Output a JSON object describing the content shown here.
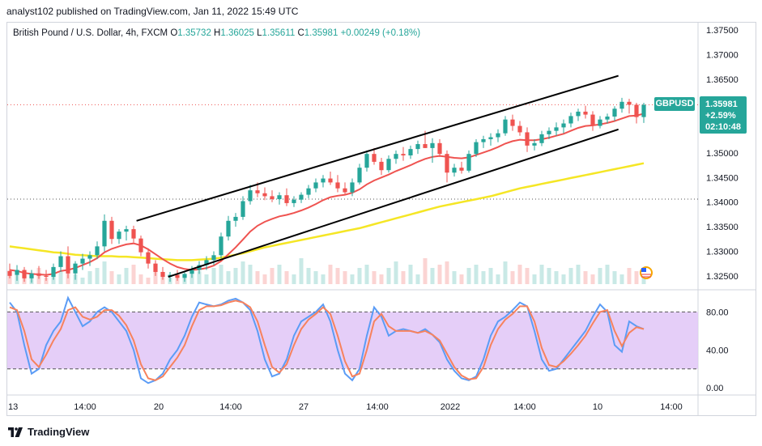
{
  "header": {
    "published": "analyst102 published on TradingView.com, Jan 11, 2022 15:49 UTC"
  },
  "instrument": {
    "name": "British Pound / U.S. Dollar, 4h, FXCM",
    "open_label": "O",
    "open": "1.35732",
    "high_label": "H",
    "high": "1.36025",
    "low_label": "L",
    "low": "1.35611",
    "close_label": "C",
    "close": "1.35981",
    "change": "+0.00249 (+0.18%)"
  },
  "price_tag": {
    "symbol": "GBPUSD",
    "price": "1.35981",
    "change": "+2.59%",
    "countdown": "02:10:48"
  },
  "footer": {
    "brand": "TradingView"
  },
  "colors": {
    "up": "#26a69a",
    "down": "#ef5350",
    "ma_fast": "#ef5350",
    "ma_slow": "#f5e625",
    "stoch_k": "#5b9cf6",
    "stoch_d": "#f7825d",
    "stoch_band": "#e1c6f7",
    "channel": "#000000",
    "tag_bg": "#26a69a"
  },
  "chart_data": [
    {
      "type": "candlestick",
      "title": "British Pound / U.S. Dollar, 4h, FXCM",
      "x_ticks": [
        "13",
        "14:00",
        "20",
        "14:00",
        "27",
        "14:00",
        "2022",
        "14:00",
        "10",
        "14:00"
      ],
      "y_ticks": [
        "1.37500",
        "1.37000",
        "1.36500",
        "1.36000",
        "1.35500",
        "1.35000",
        "1.34500",
        "1.34000",
        "1.33500",
        "1.33000",
        "1.32500"
      ],
      "ylim": [
        1.3225,
        1.3765
      ],
      "last_price": 1.35981,
      "prior_close_dotted": 1.3406,
      "ohlc": [
        [
          1.326,
          1.3275,
          1.3245,
          1.325
        ],
        [
          1.3252,
          1.3272,
          1.324,
          1.3262
        ],
        [
          1.3262,
          1.3268,
          1.3238,
          1.3245
        ],
        [
          1.3245,
          1.3262,
          1.3236,
          1.3255
        ],
        [
          1.3255,
          1.327,
          1.3244,
          1.325
        ],
        [
          1.325,
          1.3262,
          1.324,
          1.3248
        ],
        [
          1.3248,
          1.3275,
          1.3242,
          1.3268
        ],
        [
          1.3268,
          1.33,
          1.3258,
          1.329
        ],
        [
          1.329,
          1.331,
          1.3245,
          1.3255
        ],
        [
          1.3255,
          1.328,
          1.3242,
          1.3275
        ],
        [
          1.3275,
          1.3295,
          1.3262,
          1.3285
        ],
        [
          1.3285,
          1.33,
          1.327,
          1.3292
        ],
        [
          1.3292,
          1.332,
          1.3284,
          1.331
        ],
        [
          1.331,
          1.3375,
          1.33,
          1.3362
        ],
        [
          1.3362,
          1.337,
          1.3315,
          1.3325
        ],
        [
          1.3325,
          1.3345,
          1.3315,
          1.334
        ],
        [
          1.334,
          1.3352,
          1.3322,
          1.3345
        ],
        [
          1.3345,
          1.3352,
          1.3318,
          1.3326
        ],
        [
          1.3326,
          1.3332,
          1.329,
          1.3298
        ],
        [
          1.3298,
          1.3306,
          1.3265,
          1.3275
        ],
        [
          1.3275,
          1.3282,
          1.325,
          1.3258
        ],
        [
          1.3258,
          1.3268,
          1.3242,
          1.3248
        ],
        [
          1.3248,
          1.3258,
          1.3238,
          1.3252
        ],
        [
          1.3252,
          1.3262,
          1.324,
          1.3246
        ],
        [
          1.3246,
          1.326,
          1.3238,
          1.3254
        ],
        [
          1.3254,
          1.327,
          1.3246,
          1.3262
        ],
        [
          1.3262,
          1.328,
          1.3254,
          1.3272
        ],
        [
          1.3272,
          1.329,
          1.3262,
          1.3282
        ],
        [
          1.3282,
          1.33,
          1.3272,
          1.3292
        ],
        [
          1.3292,
          1.3338,
          1.3286,
          1.333
        ],
        [
          1.333,
          1.3372,
          1.3322,
          1.3362
        ],
        [
          1.3362,
          1.3378,
          1.335,
          1.337
        ],
        [
          1.337,
          1.3412,
          1.3364,
          1.3402
        ],
        [
          1.3402,
          1.3435,
          1.3395,
          1.3424
        ],
        [
          1.3424,
          1.344,
          1.341,
          1.3418
        ],
        [
          1.3418,
          1.343,
          1.3404,
          1.3412
        ],
        [
          1.3412,
          1.3424,
          1.34,
          1.3406
        ],
        [
          1.3406,
          1.342,
          1.3395,
          1.3414
        ],
        [
          1.3414,
          1.3428,
          1.3392,
          1.3398
        ],
        [
          1.3398,
          1.3412,
          1.339,
          1.3405
        ],
        [
          1.3405,
          1.342,
          1.3398,
          1.3415
        ],
        [
          1.3415,
          1.3435,
          1.3408,
          1.3428
        ],
        [
          1.3428,
          1.3448,
          1.342,
          1.344
        ],
        [
          1.344,
          1.3455,
          1.343,
          1.3448
        ],
        [
          1.3448,
          1.3462,
          1.3435,
          1.344
        ],
        [
          1.344,
          1.3455,
          1.342,
          1.3428
        ],
        [
          1.3428,
          1.344,
          1.3415,
          1.342
        ],
        [
          1.342,
          1.3448,
          1.3412,
          1.344
        ],
        [
          1.344,
          1.3478,
          1.3436,
          1.347
        ],
        [
          1.347,
          1.3505,
          1.3462,
          1.3498
        ],
        [
          1.3498,
          1.351,
          1.3476,
          1.3482
        ],
        [
          1.3482,
          1.349,
          1.3455,
          1.3465
        ],
        [
          1.3465,
          1.3495,
          1.346,
          1.3488
        ],
        [
          1.3488,
          1.3505,
          1.3478,
          1.3498
        ],
        [
          1.3498,
          1.3512,
          1.3484,
          1.3495
        ],
        [
          1.3495,
          1.3515,
          1.3488,
          1.3508
        ],
        [
          1.3508,
          1.3525,
          1.3498,
          1.3518
        ],
        [
          1.3518,
          1.3545,
          1.351,
          1.351
        ],
        [
          1.351,
          1.353,
          1.348,
          1.352
        ],
        [
          1.352,
          1.3528,
          1.3492,
          1.3498
        ],
        [
          1.3498,
          1.3505,
          1.344,
          1.346
        ],
        [
          1.346,
          1.3478,
          1.3452,
          1.347
        ],
        [
          1.347,
          1.3482,
          1.3458,
          1.3464
        ],
        [
          1.3464,
          1.3505,
          1.346,
          1.3498
        ],
        [
          1.3498,
          1.3528,
          1.3492,
          1.3522
        ],
        [
          1.3522,
          1.3535,
          1.351,
          1.3528
        ],
        [
          1.3528,
          1.354,
          1.3515,
          1.3532
        ],
        [
          1.3532,
          1.3548,
          1.3522,
          1.354
        ],
        [
          1.354,
          1.3575,
          1.3535,
          1.3568
        ],
        [
          1.3568,
          1.3578,
          1.3545,
          1.3555
        ],
        [
          1.3555,
          1.3565,
          1.3535,
          1.3542
        ],
        [
          1.3542,
          1.3552,
          1.3502,
          1.3515
        ],
        [
          1.3515,
          1.3528,
          1.3505,
          1.352
        ],
        [
          1.352,
          1.3545,
          1.3514,
          1.3538
        ],
        [
          1.3538,
          1.3552,
          1.3528,
          1.3545
        ],
        [
          1.3545,
          1.3562,
          1.3535,
          1.3552
        ],
        [
          1.3552,
          1.3568,
          1.354,
          1.356
        ],
        [
          1.356,
          1.3582,
          1.3552,
          1.3575
        ],
        [
          1.3575,
          1.359,
          1.3565,
          1.3584
        ],
        [
          1.3584,
          1.3596,
          1.357,
          1.3578
        ],
        [
          1.3578,
          1.3585,
          1.3545,
          1.3555
        ],
        [
          1.3555,
          1.3575,
          1.355,
          1.3568
        ],
        [
          1.3568,
          1.358,
          1.356,
          1.3574
        ],
        [
          1.3574,
          1.3595,
          1.3565,
          1.359
        ],
        [
          1.359,
          1.3612,
          1.3582,
          1.3604
        ],
        [
          1.3604,
          1.361,
          1.358,
          1.3598
        ],
        [
          1.3598,
          1.3602,
          1.356,
          1.3573
        ],
        [
          1.3573,
          1.3602,
          1.3561,
          1.3598
        ]
      ],
      "ma_fast": [
        1.3262,
        1.326,
        1.3256,
        1.3254,
        1.3253,
        1.3252,
        1.3254,
        1.326,
        1.3262,
        1.3266,
        1.3272,
        1.3278,
        1.3286,
        1.3298,
        1.3305,
        1.331,
        1.3314,
        1.3316,
        1.3312,
        1.3304,
        1.3294,
        1.3284,
        1.3275,
        1.3268,
        1.3264,
        1.3262,
        1.3263,
        1.3266,
        1.3271,
        1.328,
        1.3294,
        1.3308,
        1.3324,
        1.334,
        1.3352,
        1.336,
        1.3366,
        1.3371,
        1.3374,
        1.3378,
        1.3383,
        1.3389,
        1.3396,
        1.3404,
        1.341,
        1.3413,
        1.3415,
        1.3419,
        1.3426,
        1.3436,
        1.3444,
        1.345,
        1.3456,
        1.3463,
        1.3469,
        1.3475,
        1.3482,
        1.3488,
        1.3492,
        1.3494,
        1.3492,
        1.349,
        1.3489,
        1.3491,
        1.3496,
        1.3501,
        1.3506,
        1.3512,
        1.3519,
        1.3524,
        1.3527,
        1.3526,
        1.3526,
        1.3528,
        1.3531,
        1.3535,
        1.3539,
        1.3545,
        1.3551,
        1.3555,
        1.3556,
        1.3558,
        1.3561,
        1.3565,
        1.357,
        1.3575,
        1.3576,
        1.358
      ],
      "ma_slow": [
        1.331,
        1.3308,
        1.3306,
        1.3304,
        1.3302,
        1.33,
        1.3298,
        1.3297,
        1.3295,
        1.3293,
        1.3292,
        1.3291,
        1.329,
        1.329,
        1.329,
        1.3289,
        1.3289,
        1.3288,
        1.3287,
        1.3286,
        1.3285,
        1.3284,
        1.3283,
        1.3282,
        1.3282,
        1.3282,
        1.3283,
        1.3284,
        1.3285,
        1.3287,
        1.329,
        1.3293,
        1.3296,
        1.33,
        1.3304,
        1.3308,
        1.3311,
        1.3314,
        1.3317,
        1.332,
        1.3323,
        1.3326,
        1.3329,
        1.3332,
        1.3335,
        1.3338,
        1.3341,
        1.3344,
        1.3347,
        1.3351,
        1.3355,
        1.3359,
        1.3363,
        1.3367,
        1.3371,
        1.3375,
        1.3379,
        1.3383,
        1.3387,
        1.3391,
        1.3394,
        1.3397,
        1.34,
        1.3403,
        1.3406,
        1.3409,
        1.3412,
        1.3416,
        1.342,
        1.3424,
        1.3428,
        1.3431,
        1.3434,
        1.3437,
        1.344,
        1.3443,
        1.3446,
        1.3449,
        1.3452,
        1.3455,
        1.3458,
        1.3461,
        1.3464,
        1.3467,
        1.347,
        1.3473,
        1.3476,
        1.3479
      ],
      "volume": [
        3,
        4,
        2,
        3,
        5,
        2,
        3,
        4,
        6,
        3,
        2,
        4,
        5,
        7,
        4,
        3,
        5,
        6,
        3,
        2,
        4,
        3,
        2,
        3,
        2,
        3,
        4,
        3,
        5,
        6,
        4,
        5,
        7,
        6,
        4,
        3,
        5,
        6,
        4,
        3,
        8,
        5,
        4,
        3,
        6,
        5,
        4,
        3,
        5,
        6,
        4,
        3,
        5,
        7,
        4,
        6,
        3,
        8,
        5,
        6,
        7,
        4,
        3,
        5,
        6,
        4,
        5,
        3,
        7,
        4,
        6,
        5,
        3,
        6,
        5,
        4,
        3,
        5,
        6,
        4,
        3,
        5,
        6,
        4,
        3,
        5,
        4,
        3
      ],
      "channel_upper": [
        [
          1.3362,
          0.2
        ],
        [
          1.3657,
          0.96
        ]
      ],
      "channel_lower": [
        [
          1.3248,
          0.25
        ],
        [
          1.3548,
          0.96
        ]
      ]
    },
    {
      "type": "line",
      "title": "Stochastic",
      "y_ticks": [
        "80.00",
        "40.00",
        "0.00"
      ],
      "ylim": [
        -5,
        100
      ],
      "band": [
        20,
        80
      ],
      "series": [
        {
          "key": "k",
          "values": [
            90,
            80,
            45,
            15,
            20,
            45,
            60,
            70,
            95,
            80,
            65,
            70,
            80,
            85,
            80,
            70,
            60,
            40,
            10,
            5,
            8,
            15,
            30,
            40,
            55,
            75,
            90,
            88,
            86,
            88,
            92,
            94,
            90,
            82,
            60,
            30,
            12,
            15,
            30,
            55,
            70,
            75,
            80,
            88,
            70,
            40,
            15,
            8,
            20,
            55,
            85,
            75,
            55,
            60,
            62,
            60,
            58,
            62,
            56,
            48,
            30,
            18,
            10,
            8,
            12,
            30,
            55,
            70,
            75,
            82,
            90,
            86,
            60,
            30,
            18,
            20,
            30,
            40,
            50,
            60,
            75,
            88,
            80,
            45,
            38,
            70,
            65,
            62
          ]
        },
        {
          "key": "d",
          "values": [
            85,
            82,
            60,
            30,
            22,
            35,
            50,
            62,
            82,
            85,
            75,
            72,
            75,
            82,
            82,
            76,
            66,
            50,
            25,
            10,
            8,
            12,
            22,
            32,
            45,
            65,
            82,
            86,
            86,
            87,
            90,
            92,
            90,
            85,
            70,
            45,
            22,
            16,
            25,
            45,
            62,
            72,
            78,
            85,
            78,
            55,
            28,
            12,
            15,
            40,
            70,
            78,
            65,
            60,
            60,
            60,
            58,
            60,
            56,
            50,
            36,
            22,
            13,
            9,
            10,
            22,
            45,
            62,
            72,
            78,
            86,
            86,
            70,
            42,
            24,
            22,
            28,
            36,
            45,
            55,
            68,
            80,
            82,
            60,
            44,
            58,
            64,
            62
          ]
        }
      ]
    }
  ]
}
